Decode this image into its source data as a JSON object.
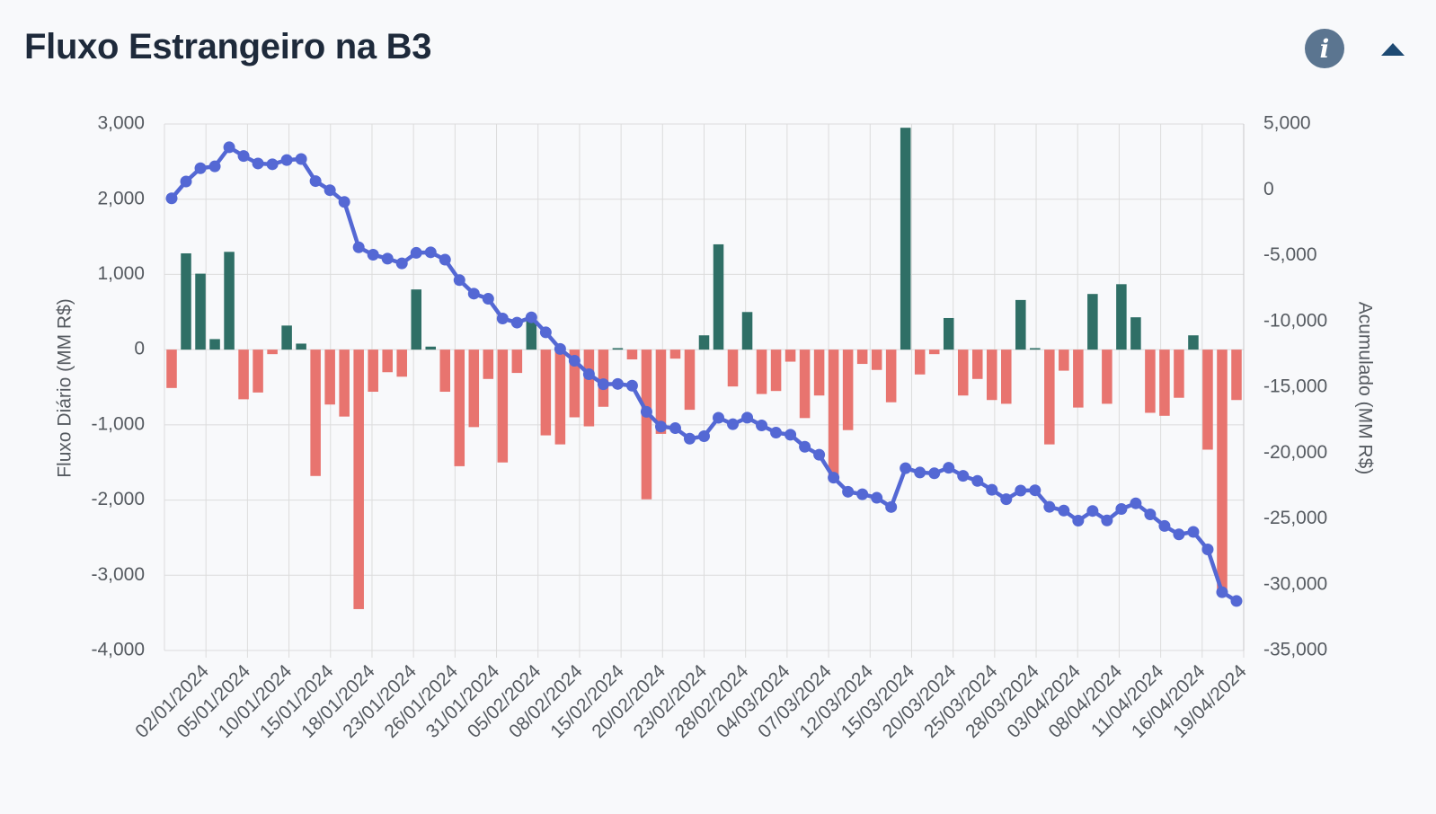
{
  "header": {
    "title": "Fluxo Estrangeiro na B3",
    "info_icon": "info-icon",
    "collapse_icon": "caret-up-icon"
  },
  "colors": {
    "positive": "#2f6f66",
    "negative": "#e8746f",
    "line": "#5468d4",
    "grid": "#dcdcdc",
    "info": "#5b7590",
    "caret": "#1e4a73"
  },
  "chart_data": {
    "type": "bar",
    "title": "Fluxo Estrangeiro na B3",
    "ylabel": "Fluxo Diário (MM R$)",
    "y2label": "Acumulado (MM R$)",
    "ylim": [
      -4000,
      3000
    ],
    "y2lim": [
      -35000,
      5000
    ],
    "yticks": [
      "3,000",
      "2,000",
      "1,000",
      "0",
      "-1,000",
      "-2,000",
      "-3,000",
      "-4,000"
    ],
    "y2ticks": [
      "5,000",
      "0",
      "-5,000",
      "-10,000",
      "-15,000",
      "-20,000",
      "-25,000",
      "-30,000",
      "-35,000"
    ],
    "x_tick_labels": [
      "02/01/2024",
      "05/01/2024",
      "10/01/2024",
      "15/01/2024",
      "18/01/2024",
      "23/01/2024",
      "26/01/2024",
      "31/01/2024",
      "05/02/2024",
      "08/02/2024",
      "15/02/2024",
      "20/02/2024",
      "23/02/2024",
      "28/02/2024",
      "04/03/2024",
      "07/03/2024",
      "12/03/2024",
      "15/03/2024",
      "20/03/2024",
      "25/03/2024",
      "28/03/2024",
      "03/04/2024",
      "08/04/2024",
      "11/04/2024",
      "16/04/2024",
      "19/04/2024"
    ],
    "series": [
      {
        "type": "bar",
        "values": [
          -510,
          1280,
          1010,
          140,
          1300,
          -660,
          -570,
          -60,
          320,
          80,
          -1680,
          -730,
          -890,
          -3450,
          -560,
          -300,
          -360,
          800,
          40,
          -560,
          -1550,
          -1030,
          -390,
          -1500,
          -310,
          400,
          -1140,
          -1260,
          -900,
          -1020,
          -760,
          20,
          -130,
          -1990,
          -1120,
          -120,
          -800,
          190,
          1400,
          -490,
          500,
          -590,
          -550,
          -160,
          -910,
          -610,
          -1740,
          -1070,
          -190,
          -270,
          -700,
          2950,
          -330,
          -60,
          420,
          -610,
          -390,
          -670,
          -720,
          660,
          20,
          -1260,
          -280,
          -770,
          740,
          -720,
          870,
          430,
          -840,
          -880,
          -640,
          190,
          -1330,
          -3250,
          -670
        ]
      },
      {
        "type": "line",
        "values": [
          -650,
          630,
          1640,
          1780,
          3230,
          2570,
          2000,
          1940,
          2260,
          2340,
          660,
          -30,
          -920,
          -4370,
          -4930,
          -5230,
          -5590,
          -4790,
          -4750,
          -5310,
          -6860,
          -7890,
          -8280,
          -9780,
          -10090,
          -9690,
          -10830,
          -12090,
          -12990,
          -14010,
          -14770,
          -14750,
          -14880,
          -16870,
          -17990,
          -18110,
          -18910,
          -18720,
          -17320,
          -17810,
          -17310,
          -17900,
          -18450,
          -18610,
          -19520,
          -20130,
          -21870,
          -22940,
          -23130,
          -23400,
          -24100,
          -21150,
          -21480,
          -21540,
          -21120,
          -21730,
          -22120,
          -22790,
          -23510,
          -22850,
          -22830,
          -24090,
          -24370,
          -25140,
          -24400,
          -25120,
          -24250,
          -23820,
          -24660,
          -25540,
          -26180,
          -25990,
          -27320,
          -30570,
          -31240
        ]
      }
    ],
    "grid": true,
    "legend": "none"
  }
}
